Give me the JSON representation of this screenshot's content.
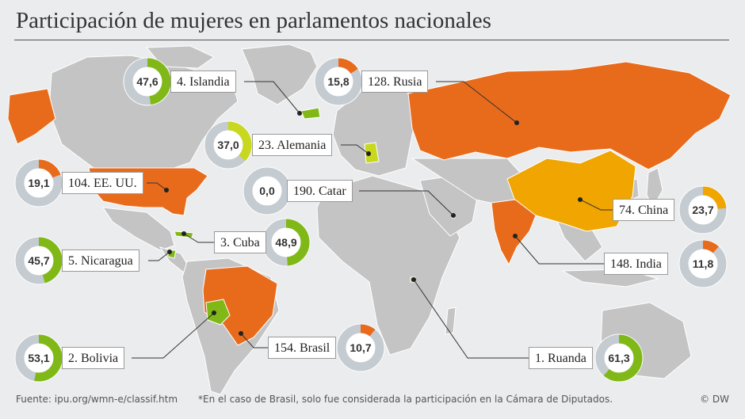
{
  "title": "Participación de mujeres en parlamentos nacionales",
  "colors": {
    "high": "#80b917",
    "mid": "#c7d81f",
    "low": "#e86b1c",
    "china": "#f0a500",
    "ring_bg": "#c4cbd1",
    "land": "#c4c4c4",
    "ocean": "#eaeced"
  },
  "chart_data": {
    "type": "donut-map",
    "title": "Participación de mujeres en parlamentos nacionales",
    "unit": "%",
    "countries": [
      {
        "label": "4. Islandia",
        "rank": 4,
        "name": "Islandia",
        "value": "47,6",
        "pct": 47.6,
        "color_key": "high"
      },
      {
        "label": "128. Rusia",
        "rank": 128,
        "name": "Rusia",
        "value": "15,8",
        "pct": 15.8,
        "color_key": "low"
      },
      {
        "label": "23. Alemania",
        "rank": 23,
        "name": "Alemania",
        "value": "37,0",
        "pct": 37.0,
        "color_key": "mid"
      },
      {
        "label": "104. EE. UU.",
        "rank": 104,
        "name": "EE. UU.",
        "value": "19,1",
        "pct": 19.1,
        "color_key": "low"
      },
      {
        "label": "190. Catar",
        "rank": 190,
        "name": "Catar",
        "value": "0,0",
        "pct": 0.0,
        "color_key": "low"
      },
      {
        "label": "74. China",
        "rank": 74,
        "name": "China",
        "value": "23,7",
        "pct": 23.7,
        "color_key": "china"
      },
      {
        "label": "3. Cuba",
        "rank": 3,
        "name": "Cuba",
        "value": "48,9",
        "pct": 48.9,
        "color_key": "high"
      },
      {
        "label": "5. Nicaragua",
        "rank": 5,
        "name": "Nicaragua",
        "value": "45,7",
        "pct": 45.7,
        "color_key": "high"
      },
      {
        "label": "148. India",
        "rank": 148,
        "name": "India",
        "value": "11,8",
        "pct": 11.8,
        "color_key": "low"
      },
      {
        "label": "2. Bolivia",
        "rank": 2,
        "name": "Bolivia",
        "value": "53,1",
        "pct": 53.1,
        "color_key": "high"
      },
      {
        "label": "154. Brasil",
        "rank": 154,
        "name": "Brasil",
        "value": "10,7",
        "pct": 10.7,
        "color_key": "low"
      },
      {
        "label": "1. Ruanda",
        "rank": 1,
        "name": "Ruanda",
        "value": "61,3",
        "pct": 61.3,
        "color_key": "high"
      }
    ]
  },
  "footer": {
    "source": "Fuente: ipu.org/wmn-e/classif.htm",
    "note": "*En el caso de Brasil, solo fue considerada la participación en la Cámara de Diputados.",
    "copyright": "© DW"
  }
}
